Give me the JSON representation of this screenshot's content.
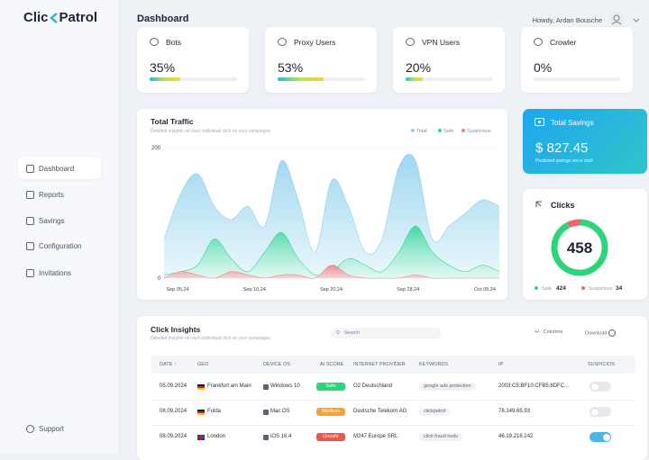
{
  "brand": {
    "left": "Clic",
    "right": "Patrol"
  },
  "nav": [
    "Dashboard",
    "Reports",
    "Savings",
    "Configuration",
    "Invitations"
  ],
  "support": "Support",
  "header": {
    "title": "Dashboard",
    "greeting": "Howdy, Ardan Bousche"
  },
  "stats": [
    {
      "title": "Bots",
      "value": 35,
      "value_label": "35%"
    },
    {
      "title": "Proxy Users",
      "value": 53,
      "value_label": "53%"
    },
    {
      "title": "VPN Users",
      "value": 20,
      "value_label": "20%"
    },
    {
      "title": "Crowler",
      "value": 0,
      "value_label": "0%"
    }
  ],
  "chart_data": {
    "type": "area",
    "title": "Total Traffic",
    "subtitle": "Detailed insights on each individual click on your campaigns",
    "xtick_labels": [
      "Sep 05,24",
      "Sep 10,24",
      "Sep 20,24",
      "Sep 28,24",
      "Oct 05,24"
    ],
    "ylim": [
      0,
      200
    ],
    "yticks": [
      0,
      200
    ],
    "series": [
      {
        "name": "Total",
        "color": "#8fd0ee",
        "values": [
          60,
          130,
          160,
          110,
          90,
          110,
          80,
          180,
          120,
          40,
          150,
          110,
          40,
          60,
          170,
          180,
          60,
          80,
          100,
          120,
          110
        ]
      },
      {
        "name": "Safe",
        "color": "#34d399",
        "values": [
          5,
          10,
          20,
          60,
          30,
          10,
          40,
          70,
          30,
          5,
          10,
          30,
          20,
          10,
          40,
          80,
          40,
          20,
          10,
          20,
          10
        ]
      },
      {
        "name": "Suspicious",
        "color": "#e8868c",
        "values": [
          0,
          10,
          5,
          0,
          10,
          5,
          0,
          5,
          5,
          0,
          20,
          5,
          0,
          0,
          0,
          5,
          0,
          0,
          0,
          0,
          0
        ]
      }
    ]
  },
  "savings": {
    "title": "Total Savings",
    "amount": "$ 827.45",
    "note": "Predicted savings since start"
  },
  "clicks": {
    "title": "Clicks",
    "total": 458,
    "safe_label": "Safe",
    "safe": 424,
    "safe_color": "#2ed47a",
    "suspicious_label": "Suspicious",
    "suspicious": 34,
    "suspicious_color": "#f06470"
  },
  "insights": {
    "title": "Click Insights",
    "subtitle": "Detailed insights on each individual click on your campaigns",
    "search": "Search",
    "columns": "+/-  Columns",
    "download": "Download",
    "headers": [
      "DATE ↑",
      "GEO",
      "DEVICE OS",
      "AI SCORE",
      "INTERNET PROVIDER",
      "KEYWORDS",
      "IP",
      "SUSPICIOS"
    ],
    "rows": [
      {
        "date": "05.09.2024",
        "geo": "Frankfurt am Main",
        "device": "Windows 10",
        "ai_score": "Safe",
        "ai_color": "#2ed47a",
        "provider": "O2 Deutschland",
        "keyword": "google ads protection",
        "ip": "2003:C5:BF10:CFB5:8DFC...",
        "suspicious": false
      },
      {
        "date": "08.09.2024",
        "geo": "Fulda",
        "device": "Mac OS",
        "ai_score": "Medium",
        "ai_color": "#f2a33a",
        "provider": "Deutsche Telekom AG",
        "keyword": "clickpatrol",
        "ip": "78.149.65.93",
        "suspicious": false
      },
      {
        "date": "08.09.2024",
        "geo": "London",
        "device": "iOS 16.4",
        "ai_score": "Unsafe",
        "ai_color": "#e9574f",
        "provider": "M247 Europe SRL",
        "keyword": "click fraud tools",
        "ip": "46.19.216.242",
        "suspicious": true
      }
    ]
  }
}
